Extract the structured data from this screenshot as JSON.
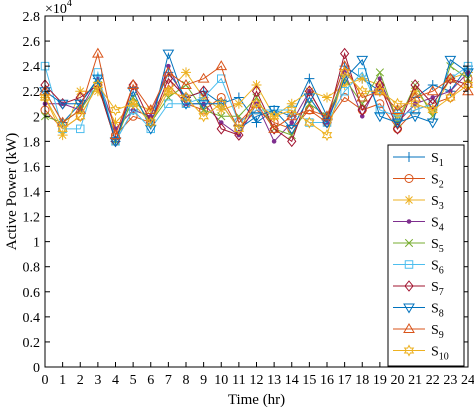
{
  "chart_data": {
    "type": "line",
    "title": "",
    "xlabel": "Time (hr)",
    "ylabel": "Active Power (kW)",
    "y_multiplier_label": "×10",
    "y_multiplier_exponent": "4",
    "xlim": [
      0,
      24
    ],
    "ylim": [
      0,
      2.8
    ],
    "x_ticks": [
      "0",
      "1",
      "2",
      "3",
      "4",
      "5",
      "6",
      "7",
      "8",
      "9",
      "10",
      "11",
      "12",
      "13",
      "14",
      "15",
      "16",
      "17",
      "18",
      "19",
      "20",
      "21",
      "22",
      "23",
      "24"
    ],
    "y_ticks": [
      "0",
      "0.2",
      "0.4",
      "0.6",
      "0.8",
      "1",
      "1.2",
      "1.4",
      "1.6",
      "1.8",
      "2",
      "2.2",
      "2.4",
      "2.6",
      "2.8"
    ],
    "grid": false,
    "legend_position": "right",
    "x": [
      0,
      1,
      2,
      3,
      4,
      5,
      6,
      7,
      8,
      9,
      10,
      11,
      12,
      13,
      14,
      15,
      16,
      17,
      18,
      19,
      20,
      21,
      22,
      23,
      24
    ],
    "series": [
      {
        "name": "S",
        "subscript": "1",
        "color": "#0072bd",
        "marker": "plus",
        "values": [
          2.2,
          1.95,
          2.1,
          2.3,
          1.8,
          2.05,
          2.0,
          2.35,
          2.15,
          2.2,
          2.1,
          2.15,
          1.95,
          2.05,
          2.0,
          2.3,
          2.0,
          2.4,
          2.3,
          2.2,
          2.05,
          2.15,
          2.25,
          2.2,
          2.4
        ]
      },
      {
        "name": "S",
        "subscript": "2",
        "color": "#d95319",
        "marker": "circle",
        "values": [
          2.05,
          1.9,
          2.0,
          2.25,
          1.85,
          2.0,
          1.95,
          2.25,
          2.1,
          2.05,
          2.15,
          1.9,
          2.05,
          1.95,
          1.9,
          2.05,
          1.95,
          2.15,
          2.05,
          2.1,
          1.9,
          2.05,
          2.1,
          2.15,
          2.3
        ]
      },
      {
        "name": "S",
        "subscript": "3",
        "color": "#edb120",
        "marker": "asterisk",
        "values": [
          2.15,
          1.85,
          2.2,
          2.2,
          1.95,
          2.1,
          2.05,
          2.2,
          2.35,
          2.15,
          2.05,
          2.1,
          2.25,
          2.0,
          2.1,
          2.2,
          2.15,
          2.25,
          2.3,
          2.25,
          2.0,
          2.2,
          2.05,
          2.3,
          2.35
        ]
      },
      {
        "name": "S",
        "subscript": "4",
        "color": "#7e2f8e",
        "marker": "dot",
        "values": [
          2.1,
          2.1,
          2.05,
          2.3,
          1.9,
          2.05,
          2.0,
          2.4,
          2.1,
          2.1,
          1.95,
          1.85,
          2.1,
          1.8,
          1.95,
          2.2,
          1.95,
          2.35,
          2.0,
          2.3,
          1.95,
          2.1,
          2.15,
          2.2,
          2.35
        ]
      },
      {
        "name": "S",
        "subscript": "5",
        "color": "#77ac30",
        "marker": "x",
        "values": [
          2.0,
          1.95,
          2.05,
          2.25,
          1.8,
          2.15,
          1.95,
          2.15,
          2.25,
          2.05,
          2.0,
          2.0,
          2.15,
          1.9,
          1.85,
          2.1,
          2.0,
          2.3,
          2.1,
          2.35,
          1.95,
          2.25,
          2.0,
          2.4,
          2.3
        ]
      },
      {
        "name": "S",
        "subscript": "6",
        "color": "#4dbeee",
        "marker": "square",
        "values": [
          2.4,
          1.9,
          1.9,
          2.35,
          1.8,
          2.05,
          1.9,
          2.1,
          2.1,
          2.15,
          2.3,
          1.95,
          2.05,
          2.05,
          2.05,
          1.95,
          1.95,
          2.2,
          2.35,
          2.05,
          2.0,
          2.05,
          2.1,
          2.3,
          2.4
        ]
      },
      {
        "name": "S",
        "subscript": "7",
        "color": "#a2142f",
        "marker": "diamond",
        "values": [
          2.25,
          2.1,
          2.15,
          2.25,
          1.8,
          2.25,
          1.95,
          2.3,
          2.15,
          2.2,
          1.9,
          1.85,
          2.2,
          1.9,
          1.8,
          2.2,
          1.95,
          2.5,
          2.05,
          2.25,
          1.9,
          2.25,
          2.1,
          2.3,
          2.25
        ]
      },
      {
        "name": "S",
        "subscript": "8",
        "color": "#0072bd",
        "marker": "triangle-down",
        "values": [
          2.2,
          2.1,
          2.1,
          2.3,
          1.8,
          2.2,
          1.9,
          2.5,
          2.1,
          2.1,
          2.1,
          1.9,
          2.0,
          2.05,
          1.9,
          2.15,
          1.95,
          2.3,
          2.45,
          2.0,
          1.95,
          2.0,
          1.95,
          2.45,
          2.35
        ]
      },
      {
        "name": "S",
        "subscript": "9",
        "color": "#d95319",
        "marker": "triangle-up",
        "values": [
          2.2,
          1.95,
          2.05,
          2.5,
          1.85,
          2.25,
          2.05,
          2.35,
          2.25,
          2.3,
          2.4,
          1.95,
          2.1,
          1.9,
          2.0,
          2.05,
          2.0,
          2.4,
          2.15,
          2.2,
          2.05,
          2.15,
          2.2,
          2.3,
          2.2
        ]
      },
      {
        "name": "S",
        "subscript": "10",
        "color": "#edb120",
        "marker": "hexagram",
        "values": [
          2.15,
          1.9,
          2.0,
          2.25,
          2.05,
          2.1,
          1.95,
          2.2,
          2.15,
          2.0,
          2.1,
          1.9,
          2.1,
          2.0,
          2.05,
          1.95,
          1.85,
          2.35,
          2.2,
          2.2,
          2.1,
          2.1,
          2.05,
          2.15,
          2.25
        ]
      }
    ]
  }
}
